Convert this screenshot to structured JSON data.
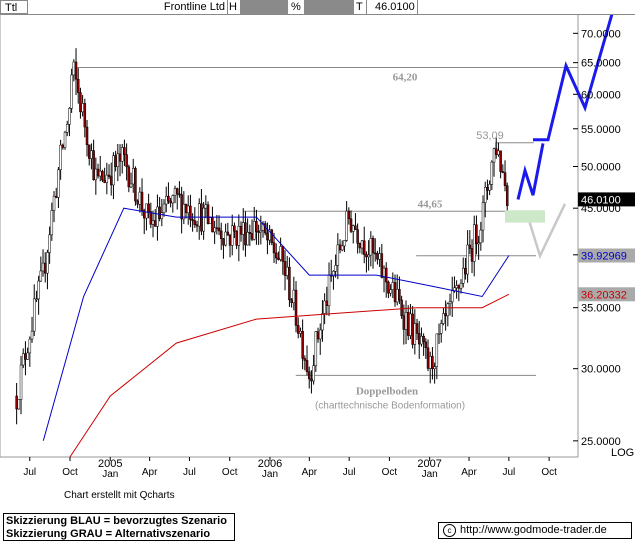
{
  "header": {
    "symbol": "Ttl",
    "name": "Frontline Ltd",
    "h_label": "H",
    "pct_label": "%",
    "t_label": "T",
    "last": "46.0100"
  },
  "credit": "Chart erstellt mit Qcharts",
  "legend": {
    "line1": "Skizzierung BLAU = bevorzugtes Szenario",
    "line2": "Skizzierung GRAU = Alternativszenario"
  },
  "footer": {
    "copyright_icon": "copyright-icon",
    "url": "http://www.godmode-trader.de"
  },
  "chart_data": {
    "type": "line",
    "subtype": "candlestick price chart with moving averages",
    "instrument": "Frontline Ltd",
    "ylim": [
      24.0,
      73.5
    ],
    "y_scale": "log",
    "y_scale_label": "LOG",
    "y_ticks": [
      "70.0000",
      "65.0000",
      "60.0000",
      "55.0000",
      "50.0000",
      "45.0000",
      "40.0000",
      "35.0000",
      "30.0000",
      "25.0000"
    ],
    "x_ticks": [
      "Jul",
      "Oct",
      "2005 Jan",
      "Apr",
      "Jul",
      "Oct",
      "2006 Jan",
      "Apr",
      "Jul",
      "Oct",
      "2007 Jan",
      "Apr",
      "Jul",
      "Oct"
    ],
    "price_series": [
      {
        "date": "2004-06",
        "value": 28.0
      },
      {
        "date": "2004-08",
        "value": 38.0
      },
      {
        "date": "2004-10",
        "value": 58.0
      },
      {
        "date": "2004-10-20",
        "value": 64.2
      },
      {
        "date": "2004-12",
        "value": 48.0
      },
      {
        "date": "2005-02",
        "value": 51.0
      },
      {
        "date": "2005-04",
        "value": 43.0
      },
      {
        "date": "2005-06",
        "value": 46.0
      },
      {
        "date": "2005-08",
        "value": 44.0
      },
      {
        "date": "2005-10",
        "value": 42.0
      },
      {
        "date": "2005-12",
        "value": 43.0
      },
      {
        "date": "2006-02",
        "value": 39.0
      },
      {
        "date": "2006-04",
        "value": 29.5
      },
      {
        "date": "2006-07",
        "value": 44.0
      },
      {
        "date": "2006-10",
        "value": 37.0
      },
      {
        "date": "2007-01",
        "value": 30.0
      },
      {
        "date": "2007-03",
        "value": 36.0
      },
      {
        "date": "2007-05",
        "value": 44.0
      },
      {
        "date": "2007-06",
        "value": 53.09
      },
      {
        "date": "2007-07",
        "value": 46.01
      }
    ],
    "ma_series": [
      {
        "name": "",
        "color": "#0000cc",
        "last_value": 39.92969,
        "last_label": "39.92969",
        "points": [
          {
            "date": "2004-08",
            "value": 25
          },
          {
            "date": "2004-11",
            "value": 36
          },
          {
            "date": "2005-02",
            "value": 45
          },
          {
            "date": "2005-06",
            "value": 44
          },
          {
            "date": "2005-12",
            "value": 44
          },
          {
            "date": "2006-04",
            "value": 38
          },
          {
            "date": "2006-09",
            "value": 38
          },
          {
            "date": "2007-01",
            "value": 37
          },
          {
            "date": "2007-05",
            "value": 36
          },
          {
            "date": "2007-07",
            "value": 39.93
          }
        ]
      },
      {
        "name": "",
        "color": "#cc0000",
        "last_value": 36.20332,
        "last_label": "36.20332",
        "points": [
          {
            "date": "2004-10",
            "value": 24
          },
          {
            "date": "2005-01",
            "value": 28
          },
          {
            "date": "2005-06",
            "value": 32
          },
          {
            "date": "2005-12",
            "value": 34
          },
          {
            "date": "2006-06",
            "value": 34.5
          },
          {
            "date": "2006-12",
            "value": 35
          },
          {
            "date": "2007-05",
            "value": 35
          },
          {
            "date": "2007-07",
            "value": 36.2
          }
        ]
      }
    ],
    "horizontal_lines": [
      {
        "value": 64.2,
        "label": "64,20"
      },
      {
        "value": 53.09,
        "label": "53,09"
      },
      {
        "value": 44.65,
        "label": "44,65"
      },
      {
        "value": 39.9,
        "label": ""
      },
      {
        "value": 29.5,
        "label": ""
      }
    ],
    "annotations": [
      {
        "text": "Doppelboden",
        "bold": true
      },
      {
        "text": "(charttechnische Bodenformation)",
        "bold": false
      }
    ],
    "scenarios": [
      {
        "name": "BLAU",
        "color": "#1a1aee"
      },
      {
        "name": "GRAU",
        "color": "#c8c8c8"
      }
    ],
    "last_price_label": "46.0100"
  }
}
